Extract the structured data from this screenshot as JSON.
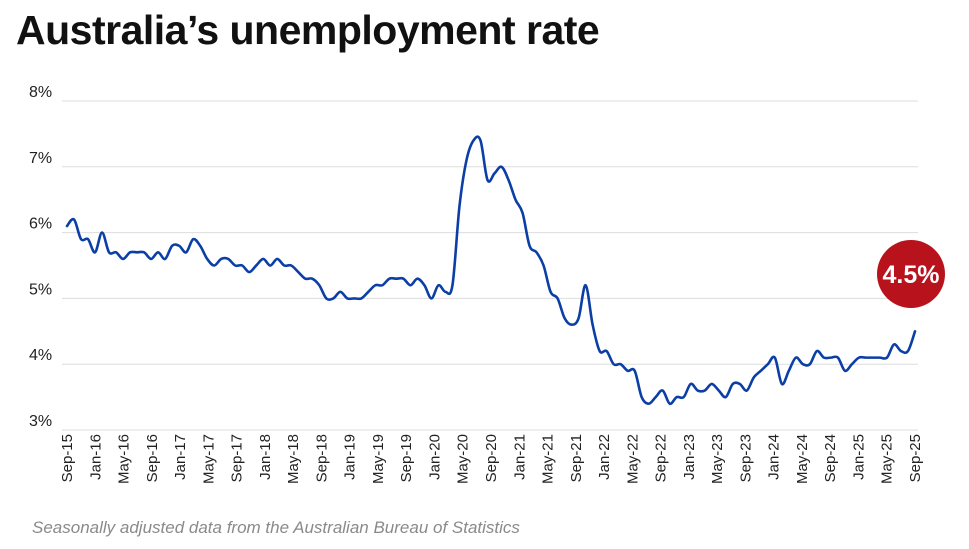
{
  "header": {
    "title": "Australia’s unemployment rate"
  },
  "footer": {
    "note": "Seasonally adjusted data from the Australian Bureau of Statistics"
  },
  "colors": {
    "line": "#0b3fa6",
    "badge": "#b8121d",
    "grid": "#dddddd",
    "text": "#222222"
  },
  "chart_data": {
    "type": "line",
    "title": "Australia’s unemployment rate",
    "xlabel": "",
    "ylabel": "",
    "ylim": [
      3,
      8
    ],
    "y_ticks": [
      "3%",
      "4%",
      "5%",
      "6%",
      "7%",
      "8%"
    ],
    "y_tick_values": [
      3,
      4,
      5,
      6,
      7,
      8
    ],
    "grid": true,
    "x_ticks": [
      "Sep-15",
      "Jan-16",
      "May-16",
      "Sep-16",
      "Jan-17",
      "May-17",
      "Sep-17",
      "Jan-18",
      "May-18",
      "Sep-18",
      "Jan-19",
      "May-19",
      "Sep-19",
      "Jan-20",
      "May-20",
      "Sep-20",
      "Jan-21",
      "May-21",
      "Sep-21",
      "Jan-22",
      "May-22",
      "Sep-22",
      "Jan-23",
      "May-23",
      "Sep-23",
      "Jan-24",
      "May-24",
      "Sep-24",
      "Jan-25",
      "May-25",
      "Sep-25"
    ],
    "x_start": "Sep-15",
    "x_end": "Sep-25",
    "annotation": {
      "label": "4.5%",
      "value": 4.5
    },
    "series": [
      {
        "values": [
          6.1,
          6.2,
          5.9,
          5.9,
          5.7,
          6.0,
          5.7,
          5.7,
          5.6,
          5.7,
          5.7,
          5.7,
          5.6,
          5.7,
          5.6,
          5.8,
          5.8,
          5.7,
          5.9,
          5.8,
          5.6,
          5.5,
          5.6,
          5.6,
          5.5,
          5.5,
          5.4,
          5.5,
          5.6,
          5.5,
          5.6,
          5.5,
          5.5,
          5.4,
          5.3,
          5.3,
          5.2,
          5.0,
          5.0,
          5.1,
          5.0,
          5.0,
          5.0,
          5.1,
          5.2,
          5.2,
          5.3,
          5.3,
          5.3,
          5.2,
          5.3,
          5.2,
          5.0,
          5.2,
          5.1,
          5.2,
          6.4,
          7.1,
          7.4,
          7.4,
          6.8,
          6.9,
          7.0,
          6.8,
          6.5,
          6.3,
          5.8,
          5.7,
          5.5,
          5.1,
          5.0,
          4.7,
          4.6,
          4.7,
          5.2,
          4.6,
          4.2,
          4.2,
          4.0,
          4.0,
          3.9,
          3.9,
          3.5,
          3.4,
          3.5,
          3.6,
          3.4,
          3.5,
          3.5,
          3.7,
          3.6,
          3.6,
          3.7,
          3.6,
          3.5,
          3.7,
          3.7,
          3.6,
          3.8,
          3.9,
          4.0,
          4.1,
          3.7,
          3.9,
          4.1,
          4.0,
          4.0,
          4.2,
          4.1,
          4.1,
          4.1,
          3.9,
          4.0,
          4.1,
          4.1,
          4.1,
          4.1,
          4.1,
          4.3,
          4.2,
          4.2,
          4.5
        ]
      }
    ]
  }
}
